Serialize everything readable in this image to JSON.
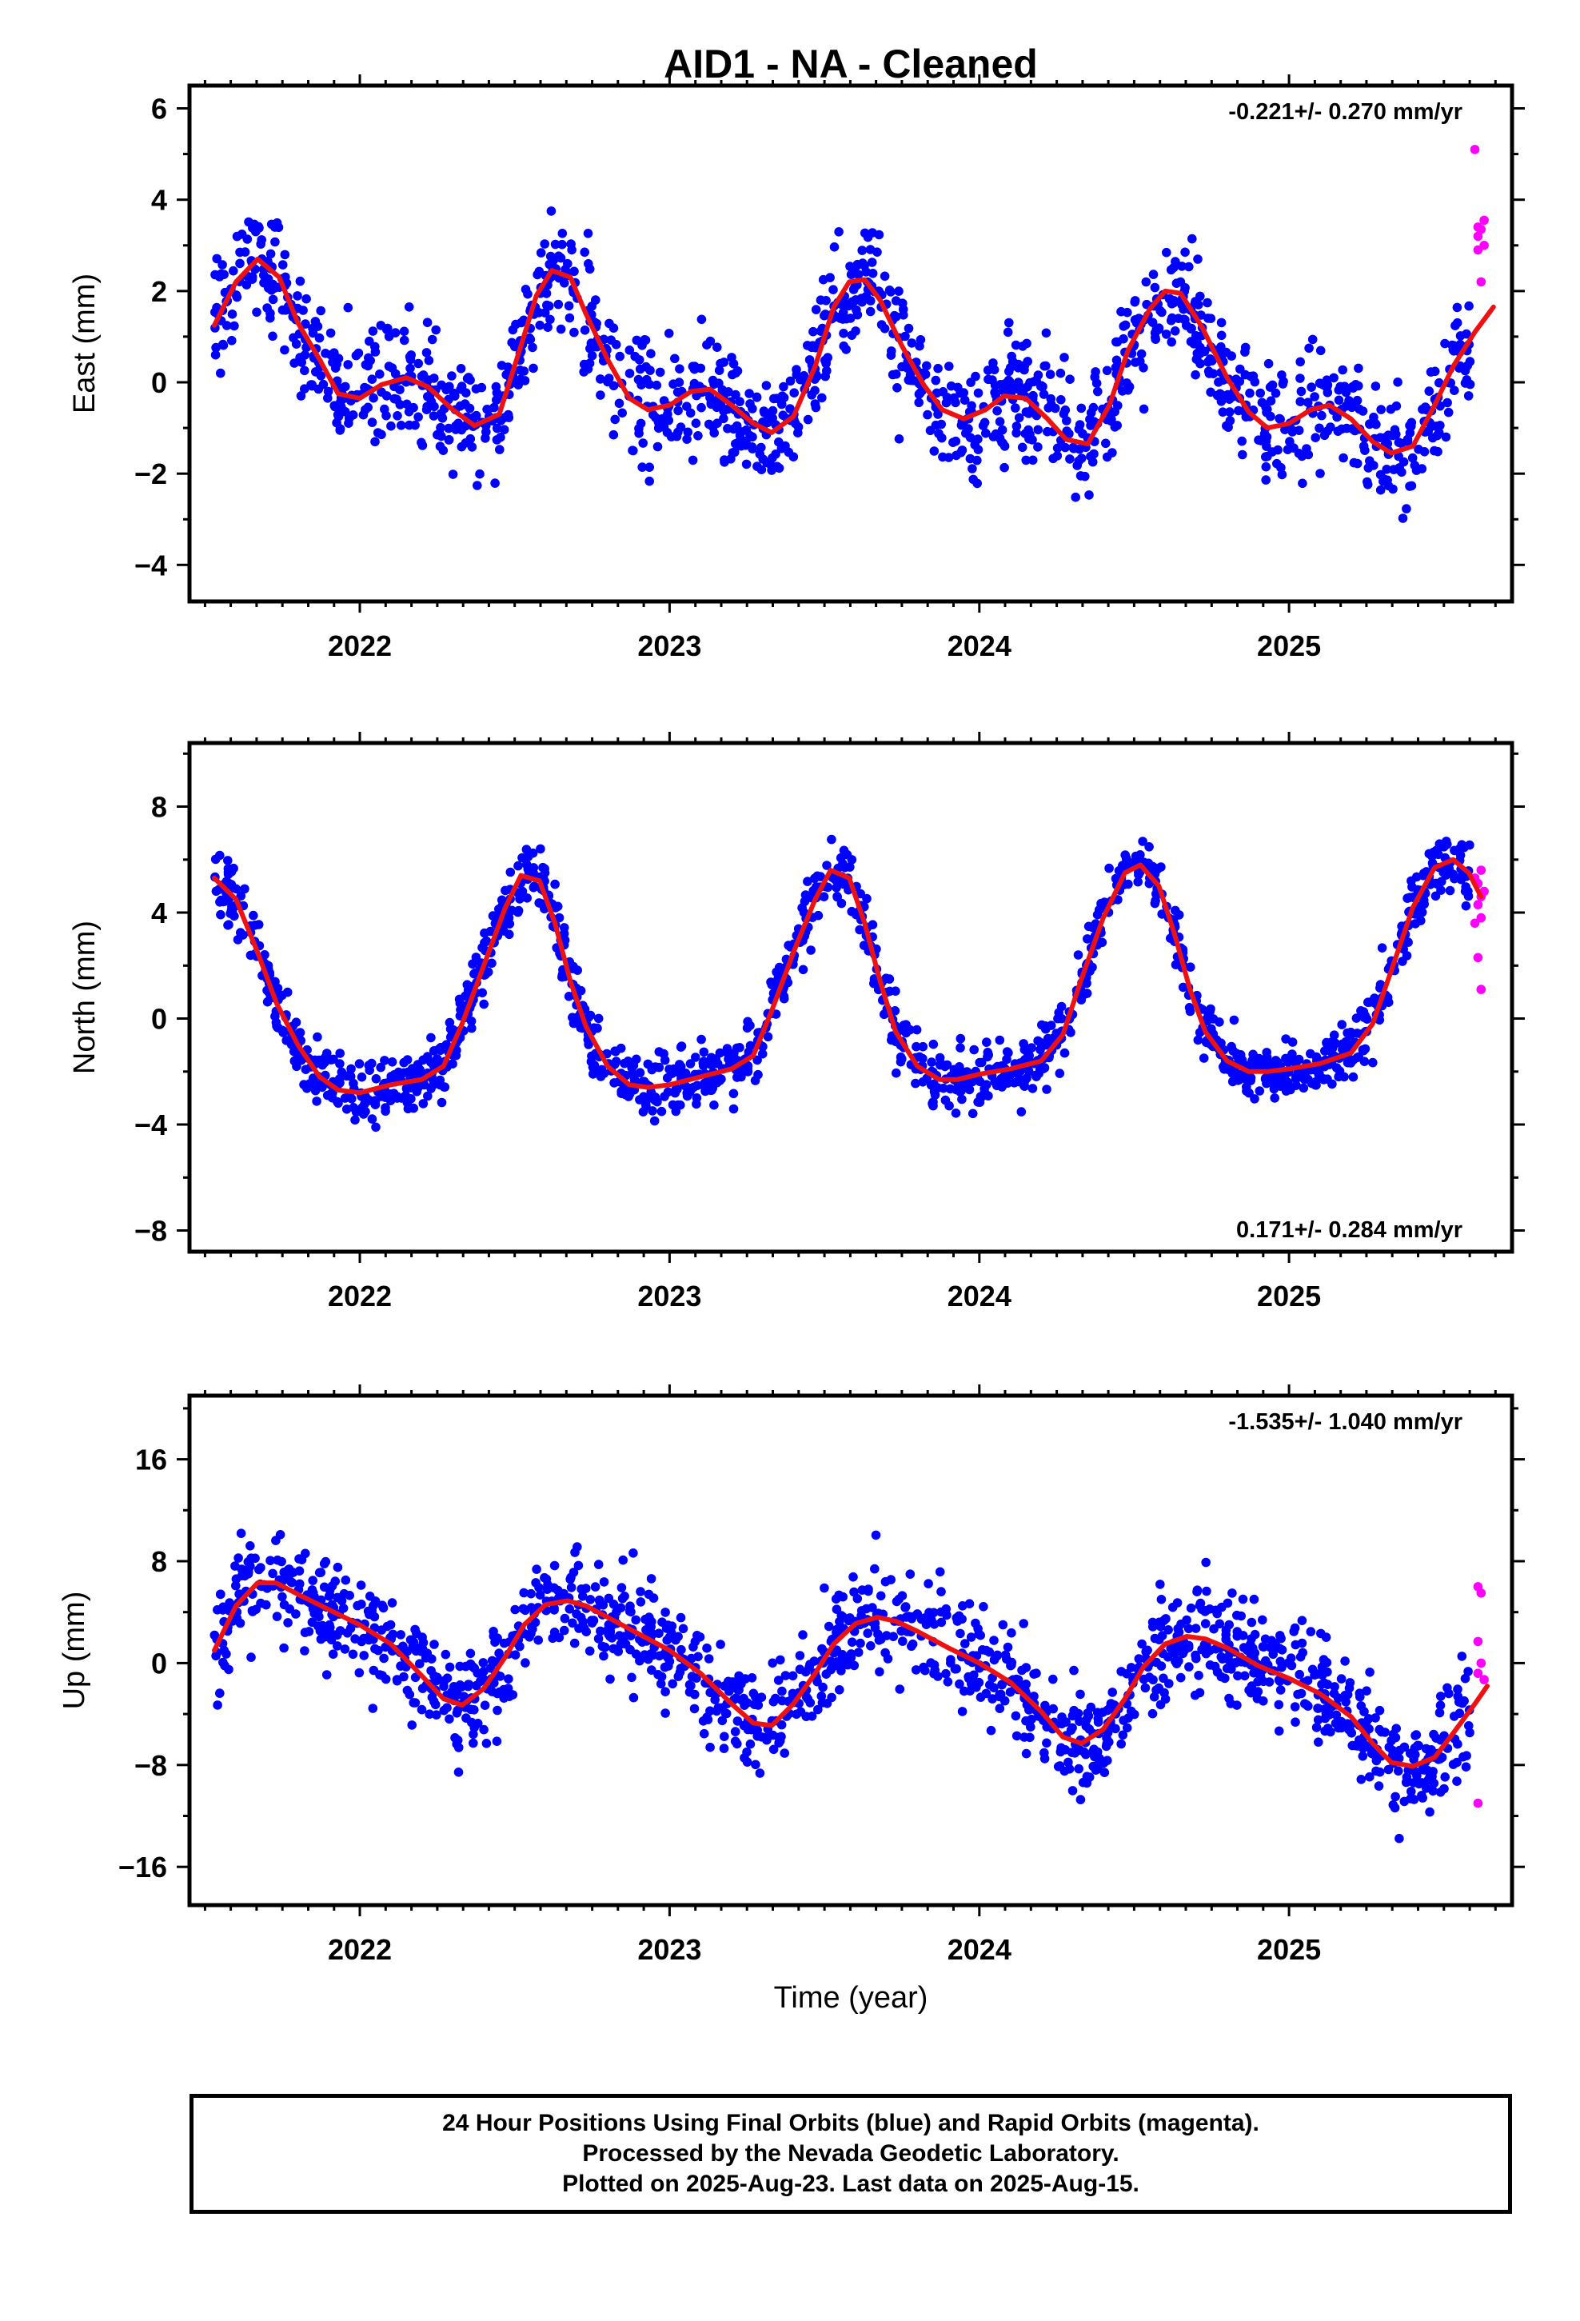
{
  "title": "AID1  - NA - Cleaned",
  "xlabel": "Time (year)",
  "colors": {
    "final": "#0000ff",
    "rapid": "#ff00ff",
    "fit": "#ee1111",
    "frame": "#000000"
  },
  "footer": {
    "line1": "24 Hour Positions Using Final Orbits (blue) and Rapid Orbits (magenta).",
    "line2": "Processed by the Nevada Geodetic Laboratory.",
    "line3": "Plotted on 2025-Aug-23. Last data on 2025-Aug-15."
  },
  "chart_data": [
    {
      "type": "scatter",
      "ylabel": "East (mm)",
      "rate": "-0.221+/- 0.270 mm/yr",
      "rate_position": "top-right",
      "xlim": [
        2021.45,
        2025.72
      ],
      "ylim": [
        -4.8,
        6.5
      ],
      "xticks": [
        2022,
        2023,
        2024,
        2025
      ],
      "yticks": [
        -4,
        -2,
        0,
        2,
        4,
        6
      ],
      "yticklabels": [
        "−4",
        "−2",
        "0",
        "2",
        "4",
        "6"
      ],
      "fit": {
        "x": [
          2021.53,
          2021.6,
          2021.67,
          2021.74,
          2021.8,
          2021.87,
          2021.93,
          2022.0,
          2022.07,
          2022.15,
          2022.22,
          2022.3,
          2022.37,
          2022.45,
          2022.52,
          2022.57,
          2022.62,
          2022.68,
          2022.73,
          2022.8,
          2022.87,
          2022.93,
          2023.0,
          2023.07,
          2023.13,
          2023.2,
          2023.27,
          2023.33,
          2023.4,
          2023.47,
          2023.53,
          2023.58,
          2023.63,
          2023.68,
          2023.75,
          2023.82,
          2023.88,
          2023.95,
          2024.02,
          2024.08,
          2024.15,
          2024.22,
          2024.28,
          2024.35,
          2024.42,
          2024.48,
          2024.55,
          2024.6,
          2024.65,
          2024.72,
          2024.8,
          2024.87,
          2024.93,
          2025.0,
          2025.07,
          2025.13,
          2025.2,
          2025.27,
          2025.33,
          2025.4,
          2025.47,
          2025.53,
          2025.6,
          2025.66
        ],
        "y": [
          1.25,
          2.2,
          2.7,
          2.3,
          1.3,
          0.5,
          -0.25,
          -0.35,
          -0.05,
          0.1,
          -0.1,
          -0.6,
          -0.95,
          -0.7,
          0.8,
          1.9,
          2.45,
          2.3,
          1.5,
          0.5,
          -0.35,
          -0.6,
          -0.5,
          -0.2,
          -0.15,
          -0.5,
          -0.9,
          -1.1,
          -0.75,
          0.35,
          1.65,
          2.2,
          2.25,
          1.8,
          0.8,
          -0.05,
          -0.6,
          -0.8,
          -0.6,
          -0.3,
          -0.35,
          -0.8,
          -1.25,
          -1.35,
          -0.5,
          0.7,
          1.6,
          2.0,
          1.95,
          1.2,
          0.1,
          -0.65,
          -1.0,
          -0.9,
          -0.6,
          -0.5,
          -0.8,
          -1.3,
          -1.55,
          -1.4,
          -0.5,
          0.35,
          1.1,
          1.65
        ]
      },
      "rapid": {
        "x": [
          2025.6,
          2025.61,
          2025.62,
          2025.61,
          2025.63,
          2025.61,
          2025.62,
          2025.63
        ],
        "y": [
          5.1,
          3.4,
          3.35,
          3.2,
          3.0,
          2.9,
          2.2,
          3.55
        ]
      }
    },
    {
      "type": "scatter",
      "ylabel": "North (mm)",
      "rate": "0.171+/- 0.284 mm/yr",
      "rate_position": "bottom-right",
      "xlim": [
        2021.45,
        2025.72
      ],
      "ylim": [
        -8.8,
        10.4
      ],
      "xticks": [
        2022,
        2023,
        2024,
        2025
      ],
      "yticks": [
        -8,
        -4,
        0,
        4,
        8
      ],
      "yticklabels": [
        "−8",
        "−4",
        "0",
        "4",
        "8"
      ],
      "fit": {
        "x": [
          2021.53,
          2021.6,
          2021.67,
          2021.73,
          2021.8,
          2021.87,
          2021.93,
          2022.0,
          2022.1,
          2022.2,
          2022.27,
          2022.33,
          2022.4,
          2022.47,
          2022.52,
          2022.58,
          2022.63,
          2022.68,
          2022.73,
          2022.8,
          2022.87,
          2022.93,
          2023.0,
          2023.1,
          2023.2,
          2023.27,
          2023.33,
          2023.4,
          2023.47,
          2023.52,
          2023.58,
          2023.63,
          2023.68,
          2023.73,
          2023.8,
          2023.87,
          2023.93,
          2024.0,
          2024.1,
          2024.2,
          2024.27,
          2024.33,
          2024.4,
          2024.47,
          2024.52,
          2024.58,
          2024.63,
          2024.68,
          2024.73,
          2024.8,
          2024.87,
          2024.93,
          2025.0,
          2025.1,
          2025.2,
          2025.27,
          2025.33,
          2025.4,
          2025.47,
          2025.53,
          2025.58,
          2025.62
        ],
        "y": [
          5.3,
          4.5,
          2.5,
          0.6,
          -1.0,
          -2.2,
          -2.7,
          -2.8,
          -2.5,
          -2.3,
          -1.8,
          -0.2,
          2.0,
          4.2,
          5.4,
          5.2,
          3.6,
          1.4,
          -0.3,
          -1.8,
          -2.5,
          -2.6,
          -2.5,
          -2.2,
          -1.9,
          -1.4,
          0.3,
          2.5,
          4.5,
          5.6,
          5.3,
          3.6,
          1.4,
          -0.5,
          -1.8,
          -2.3,
          -2.3,
          -2.1,
          -1.9,
          -1.6,
          -0.6,
          1.5,
          3.8,
          5.5,
          5.8,
          5.0,
          3.2,
          1.1,
          -0.5,
          -1.6,
          -2.0,
          -2.0,
          -1.9,
          -1.7,
          -1.3,
          -0.2,
          1.8,
          4.2,
          5.7,
          6.0,
          5.5,
          4.6
        ]
      },
      "rapid": {
        "x": [
          2025.6,
          2025.62,
          2025.61,
          2025.63,
          2025.62,
          2025.61,
          2025.62,
          2025.6,
          2025.61,
          2025.62
        ],
        "y": [
          5.3,
          5.6,
          5.1,
          4.8,
          4.6,
          4.3,
          3.8,
          3.6,
          2.3,
          1.1
        ]
      }
    },
    {
      "type": "scatter",
      "ylabel": "Up (mm)",
      "rate": "-1.535+/- 1.040 mm/yr",
      "rate_position": "top-right",
      "xlim": [
        2021.45,
        2025.72
      ],
      "ylim": [
        -19.0,
        21.0
      ],
      "xticks": [
        2022,
        2023,
        2024,
        2025
      ],
      "yticks": [
        -16,
        -8,
        0,
        8,
        16
      ],
      "yticklabels": [
        "−16",
        "−8",
        "0",
        "8",
        "16"
      ],
      "fit": {
        "x": [
          2021.53,
          2021.6,
          2021.67,
          2021.73,
          2021.8,
          2021.9,
          2022.0,
          2022.1,
          2022.2,
          2022.27,
          2022.33,
          2022.4,
          2022.47,
          2022.53,
          2022.6,
          2022.67,
          2022.73,
          2022.8,
          2022.9,
          2023.0,
          2023.1,
          2023.2,
          2023.27,
          2023.33,
          2023.4,
          2023.47,
          2023.53,
          2023.6,
          2023.67,
          2023.73,
          2023.8,
          2023.9,
          2024.0,
          2024.1,
          2024.2,
          2024.27,
          2024.33,
          2024.4,
          2024.47,
          2024.53,
          2024.6,
          2024.67,
          2024.73,
          2024.8,
          2024.9,
          2025.0,
          2025.1,
          2025.2,
          2025.27,
          2025.33,
          2025.4,
          2025.47,
          2025.53,
          2025.6,
          2025.64
        ],
        "y": [
          1.0,
          4.5,
          6.3,
          6.3,
          5.4,
          4.2,
          3.0,
          1.5,
          -1.0,
          -2.8,
          -3.3,
          -2.0,
          0.5,
          3.0,
          4.6,
          4.9,
          4.5,
          3.6,
          2.3,
          1.0,
          -0.8,
          -3.2,
          -4.7,
          -4.9,
          -3.2,
          -0.8,
          1.5,
          3.1,
          3.6,
          3.3,
          2.5,
          1.2,
          0.0,
          -1.5,
          -3.8,
          -5.8,
          -6.3,
          -5.2,
          -2.8,
          -0.3,
          1.5,
          2.1,
          1.9,
          1.2,
          -0.2,
          -1.2,
          -2.4,
          -4.2,
          -6.3,
          -7.8,
          -8.1,
          -7.4,
          -5.5,
          -3.2,
          -1.8
        ]
      },
      "rapid": {
        "x": [
          2025.61,
          2025.62,
          2025.61,
          2025.62,
          2025.61,
          2025.63,
          2025.61
        ],
        "y": [
          6.0,
          5.5,
          1.7,
          0.0,
          -0.8,
          -1.3,
          -11.0
        ]
      }
    }
  ]
}
